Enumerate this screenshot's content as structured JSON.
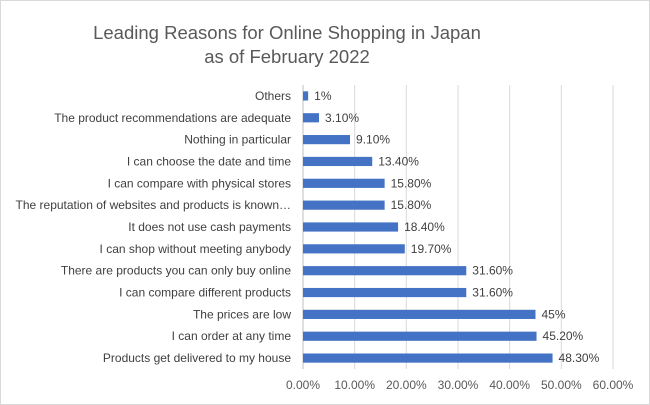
{
  "chart_data": {
    "type": "bar",
    "orientation": "horizontal",
    "title": "Leading Reasons for Online Shopping in Japan",
    "subtitle": "as of February 2022",
    "categories": [
      "Others",
      "The product recommendations are adequate",
      "Nothing in particular",
      "I can choose the date and time",
      "I can compare with physical stores",
      "The reputation of websites and products is known…",
      "It does not use cash payments",
      "I can shop without meeting anybody",
      "There are products you can only buy online",
      "I can compare different products",
      "The prices are low",
      "I can order at any time",
      "Products get delivered to my house"
    ],
    "values": [
      1,
      3.1,
      9.1,
      13.4,
      15.8,
      15.8,
      18.4,
      19.7,
      31.6,
      31.6,
      45,
      45.2,
      48.3
    ],
    "data_labels": [
      "1%",
      "3.10%",
      "9.10%",
      "13.40%",
      "15.80%",
      "15.80%",
      "18.40%",
      "19.70%",
      "31.60%",
      "31.60%",
      "45%",
      "45.20%",
      "48.30%"
    ],
    "xlim": [
      0,
      60
    ],
    "x_ticks": [
      "0.00%",
      "10.00%",
      "20.00%",
      "30.00%",
      "40.00%",
      "50.00%",
      "60.00%"
    ],
    "grid": true,
    "bar_color": "#4472c4",
    "grid_color": "#d9d9d9",
    "axis_color": "#bfbfbf"
  }
}
